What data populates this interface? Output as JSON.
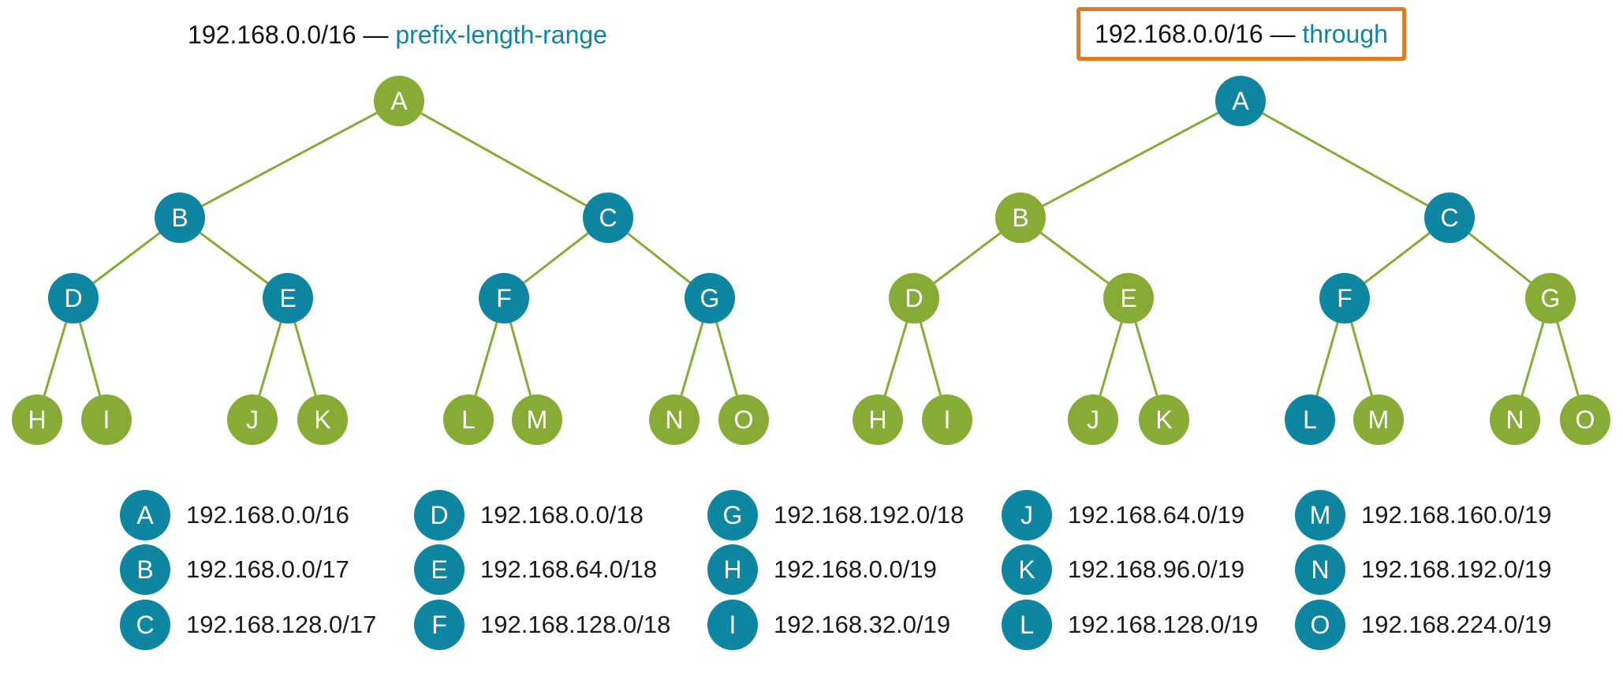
{
  "colors": {
    "blue": "#0f86a1",
    "green": "#86ac35",
    "orange": "#e07b1f",
    "line": "#86ac35"
  },
  "edges": [
    [
      "A",
      "B"
    ],
    [
      "A",
      "C"
    ],
    [
      "B",
      "D"
    ],
    [
      "B",
      "E"
    ],
    [
      "C",
      "F"
    ],
    [
      "C",
      "G"
    ],
    [
      "D",
      "H"
    ],
    [
      "D",
      "I"
    ],
    [
      "E",
      "J"
    ],
    [
      "E",
      "K"
    ],
    [
      "F",
      "L"
    ],
    [
      "F",
      "M"
    ],
    [
      "G",
      "N"
    ],
    [
      "G",
      "O"
    ]
  ],
  "trees": [
    {
      "title_prefix": "192.168.0.0/16 — ",
      "title_keyword": "prefix-length-range",
      "highlighted": false,
      "node_colors": {
        "A": "green",
        "B": "blue",
        "C": "blue",
        "D": "blue",
        "E": "blue",
        "F": "blue",
        "G": "blue",
        "H": "green",
        "I": "green",
        "J": "green",
        "K": "green",
        "L": "green",
        "M": "green",
        "N": "green",
        "O": "green"
      }
    },
    {
      "title_prefix": "192.168.0.0/16 — ",
      "title_keyword": "through",
      "highlighted": true,
      "node_colors": {
        "A": "blue",
        "B": "green",
        "C": "blue",
        "D": "green",
        "E": "green",
        "F": "blue",
        "G": "green",
        "H": "green",
        "I": "green",
        "J": "green",
        "K": "green",
        "L": "blue",
        "M": "green",
        "N": "green",
        "O": "green"
      }
    }
  ],
  "legend": [
    {
      "letter": "A",
      "prefix": "192.168.0.0/16"
    },
    {
      "letter": "B",
      "prefix": "192.168.0.0/17"
    },
    {
      "letter": "C",
      "prefix": "192.168.128.0/17"
    },
    {
      "letter": "D",
      "prefix": "192.168.0.0/18"
    },
    {
      "letter": "E",
      "prefix": "192.168.64.0/18"
    },
    {
      "letter": "F",
      "prefix": "192.168.128.0/18"
    },
    {
      "letter": "G",
      "prefix": "192.168.192.0/18"
    },
    {
      "letter": "H",
      "prefix": "192.168.0.0/19"
    },
    {
      "letter": "I",
      "prefix": "192.168.32.0/19"
    },
    {
      "letter": "J",
      "prefix": "192.168.64.0/19"
    },
    {
      "letter": "K",
      "prefix": "192.168.96.0/19"
    },
    {
      "letter": "L",
      "prefix": "192.168.128.0/19"
    },
    {
      "letter": "M",
      "prefix": "192.168.160.0/19"
    },
    {
      "letter": "N",
      "prefix": "192.168.192.0/19"
    },
    {
      "letter": "O",
      "prefix": "192.168.224.0/19"
    }
  ]
}
